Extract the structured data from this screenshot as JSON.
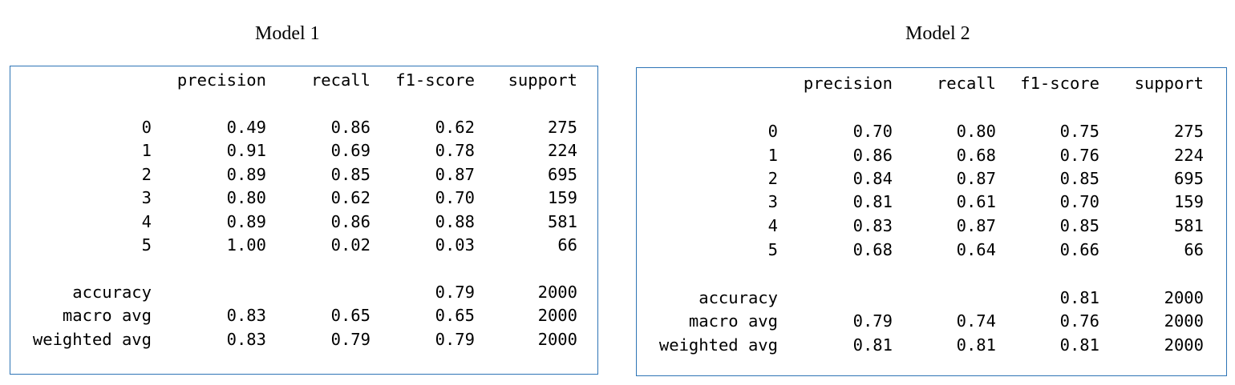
{
  "reports": [
    {
      "title": "Model 1",
      "headers": [
        "precision",
        "recall",
        "f1-score",
        "support"
      ],
      "class_rows": [
        {
          "label": "0",
          "precision": "0.49",
          "recall": "0.86",
          "f1": "0.62",
          "support": "275"
        },
        {
          "label": "1",
          "precision": "0.91",
          "recall": "0.69",
          "f1": "0.78",
          "support": "224"
        },
        {
          "label": "2",
          "precision": "0.89",
          "recall": "0.85",
          "f1": "0.87",
          "support": "695"
        },
        {
          "label": "3",
          "precision": "0.80",
          "recall": "0.62",
          "f1": "0.70",
          "support": "159"
        },
        {
          "label": "4",
          "precision": "0.89",
          "recall": "0.86",
          "f1": "0.88",
          "support": "581"
        },
        {
          "label": "5",
          "precision": "1.00",
          "recall": "0.02",
          "f1": "0.03",
          "support": "66"
        }
      ],
      "summary_rows": [
        {
          "label": "accuracy",
          "precision": "",
          "recall": "",
          "f1": "0.79",
          "support": "2000"
        },
        {
          "label": "macro avg",
          "precision": "0.83",
          "recall": "0.65",
          "f1": "0.65",
          "support": "2000"
        },
        {
          "label": "weighted avg",
          "precision": "0.83",
          "recall": "0.79",
          "f1": "0.79",
          "support": "2000"
        }
      ]
    },
    {
      "title": "Model 2",
      "headers": [
        "precision",
        "recall",
        "f1-score",
        "support"
      ],
      "class_rows": [
        {
          "label": "0",
          "precision": "0.70",
          "recall": "0.80",
          "f1": "0.75",
          "support": "275"
        },
        {
          "label": "1",
          "precision": "0.86",
          "recall": "0.68",
          "f1": "0.76",
          "support": "224"
        },
        {
          "label": "2",
          "precision": "0.84",
          "recall": "0.87",
          "f1": "0.85",
          "support": "695"
        },
        {
          "label": "3",
          "precision": "0.81",
          "recall": "0.61",
          "f1": "0.70",
          "support": "159"
        },
        {
          "label": "4",
          "precision": "0.83",
          "recall": "0.87",
          "f1": "0.85",
          "support": "581"
        },
        {
          "label": "5",
          "precision": "0.68",
          "recall": "0.64",
          "f1": "0.66",
          "support": "66"
        }
      ],
      "summary_rows": [
        {
          "label": "accuracy",
          "precision": "",
          "recall": "",
          "f1": "0.81",
          "support": "2000"
        },
        {
          "label": "macro avg",
          "precision": "0.79",
          "recall": "0.74",
          "f1": "0.76",
          "support": "2000"
        },
        {
          "label": "weighted avg",
          "precision": "0.81",
          "recall": "0.81",
          "f1": "0.81",
          "support": "2000"
        }
      ]
    }
  ],
  "colors": {
    "box_border": "#2e75b6",
    "text": "#000000"
  }
}
